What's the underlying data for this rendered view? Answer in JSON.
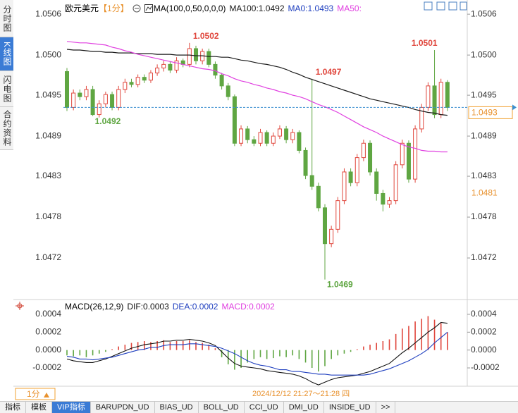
{
  "sidebar_tabs": [
    "分时图",
    "K线图",
    "闪电图",
    "合约资料"
  ],
  "chart_data": [
    {
      "type": "candlestick",
      "title": "欧元美元",
      "subtitle": "【1分】",
      "indicator": "MA(100,0,50,0,0,0)",
      "extra_label": "MA0:1.0493",
      "up_color": "#e0463c",
      "down_color": "#5fa642",
      "open": [
        1.0498,
        1.0493,
        1.0495,
        1.04945,
        1.04955,
        1.0492,
        1.04935,
        1.04948,
        1.0493,
        1.04955,
        1.04965,
        1.04962,
        1.04972,
        1.04968,
        1.04978,
        1.04985,
        1.0499,
        1.04982,
        1.04995,
        1.0499,
        1.05012,
        1.04995,
        1.05008,
        1.0499,
        1.04975,
        1.0496,
        1.04945,
        1.0488,
        1.049,
        1.04885,
        1.0488,
        1.04895,
        1.0488,
        1.0489,
        1.049,
        1.04885,
        1.04895,
        1.0487,
        1.04835,
        1.0482,
        1.0479,
        1.0474,
        1.0476,
        1.048,
        1.0484,
        1.04825,
        1.0486,
        1.0488,
        1.0484,
        1.0481,
        1.04795,
        1.048,
        1.0485,
        1.0488,
        1.0483,
        1.049,
        1.0493,
        1.0496,
        1.0492,
        1.04965
      ],
      "high": [
        1.04985,
        1.04955,
        1.04955,
        1.0496,
        1.0496,
        1.0494,
        1.04952,
        1.04952,
        1.0496,
        1.0497,
        1.0497,
        1.04976,
        1.04976,
        1.04982,
        1.0499,
        1.04995,
        1.04994,
        1.05,
        1.04998,
        1.0502,
        1.05016,
        1.05012,
        1.05012,
        1.04994,
        1.04978,
        1.04964,
        1.04948,
        1.04905,
        1.04904,
        1.0489,
        1.049,
        1.04898,
        1.04895,
        1.04905,
        1.04904,
        1.049,
        1.04898,
        1.04874,
        1.0497,
        1.04825,
        1.04795,
        1.04765,
        1.04805,
        1.04845,
        1.04845,
        1.04865,
        1.04885,
        1.04884,
        1.04845,
        1.04815,
        1.04805,
        1.04855,
        1.04885,
        1.04884,
        1.04905,
        1.04935,
        1.04965,
        1.0501,
        1.0497,
        1.04968
      ],
      "low": [
        1.04925,
        1.04926,
        1.0494,
        1.0494,
        1.04918,
        1.04916,
        1.0493,
        1.04926,
        1.04926,
        1.0495,
        1.04958,
        1.04958,
        1.04964,
        1.04964,
        1.04974,
        1.0498,
        1.04978,
        1.04978,
        1.04986,
        1.04986,
        1.0499,
        1.0499,
        1.04986,
        1.0497,
        1.04955,
        1.0494,
        1.04876,
        1.04876,
        1.0488,
        1.04876,
        1.04876,
        1.04876,
        1.04876,
        1.04886,
        1.0488,
        1.0488,
        1.04866,
        1.0483,
        1.04815,
        1.04785,
        1.0469,
        1.04735,
        1.04755,
        1.04795,
        1.0482,
        1.0482,
        1.04855,
        1.04835,
        1.048,
        1.04785,
        1.0479,
        1.04795,
        1.04845,
        1.04825,
        1.04825,
        1.04895,
        1.04925,
        1.04915,
        1.04915,
        1.04925
      ],
      "close": [
        1.0493,
        1.0495,
        1.04945,
        1.04955,
        1.0492,
        1.04935,
        1.04948,
        1.0493,
        1.04955,
        1.04965,
        1.04962,
        1.04972,
        1.04968,
        1.04978,
        1.04985,
        1.0499,
        1.04982,
        1.04995,
        1.0499,
        1.05012,
        1.04995,
        1.05008,
        1.0499,
        1.04975,
        1.0496,
        1.04945,
        1.0488,
        1.049,
        1.04885,
        1.0488,
        1.04895,
        1.0488,
        1.0489,
        1.049,
        1.04885,
        1.04895,
        1.0487,
        1.04835,
        1.0482,
        1.0479,
        1.0474,
        1.0476,
        1.048,
        1.0484,
        1.04825,
        1.0486,
        1.0488,
        1.0484,
        1.0481,
        1.04795,
        1.048,
        1.0485,
        1.0488,
        1.0483,
        1.049,
        1.0493,
        1.0496,
        1.0492,
        1.04965,
        1.0493
      ],
      "high_labels": [
        null,
        null,
        null,
        null,
        null,
        null,
        null,
        null,
        null,
        null,
        null,
        null,
        null,
        null,
        null,
        null,
        null,
        null,
        null,
        "1.0502",
        null,
        null,
        null,
        null,
        null,
        null,
        null,
        null,
        null,
        null,
        null,
        null,
        null,
        null,
        null,
        null,
        null,
        null,
        "1.0497",
        null,
        null,
        null,
        null,
        null,
        null,
        null,
        null,
        null,
        null,
        null,
        null,
        null,
        null,
        null,
        null,
        null,
        null,
        "1.0501",
        null,
        null
      ],
      "low_labels": [
        null,
        null,
        null,
        null,
        "1.0492",
        null,
        null,
        null,
        null,
        null,
        null,
        null,
        null,
        null,
        null,
        null,
        null,
        null,
        null,
        null,
        null,
        null,
        null,
        null,
        null,
        null,
        null,
        null,
        null,
        null,
        null,
        null,
        null,
        null,
        null,
        null,
        null,
        null,
        null,
        null,
        "1.0469",
        null,
        null,
        null,
        null,
        null,
        null,
        null,
        null,
        null,
        null,
        null,
        null,
        null,
        null,
        null,
        null,
        null,
        null,
        null
      ],
      "series": [
        {
          "name": "MA100:1.0492",
          "color": "#1a1a1a",
          "values": [
            1.05011,
            1.0501,
            1.0501,
            1.05009,
            1.05008,
            1.05008,
            1.05007,
            1.05007,
            1.05006,
            1.05006,
            1.05006,
            1.05005,
            1.05005,
            1.05005,
            1.05004,
            1.05004,
            1.05004,
            1.05003,
            1.05003,
            1.05003,
            1.05002,
            1.05002,
            1.05001,
            1.05001,
            1.05,
            1.05,
            1.04998,
            1.04996,
            1.04995,
            1.04993,
            1.04991,
            1.0499,
            1.04988,
            1.04986,
            1.04983,
            1.04979,
            1.04976,
            1.04972,
            1.04969,
            1.04966,
            1.04963,
            1.0496,
            1.04957,
            1.04954,
            1.04951,
            1.04948,
            1.04945,
            1.04942,
            1.0494,
            1.04938,
            1.04936,
            1.04934,
            1.04932,
            1.0493,
            1.04927,
            1.04925,
            1.04923,
            1.04922,
            1.0492,
            1.04919
          ]
        },
        {
          "name": "MA50:",
          "color": "#e040e0",
          "values": [
            1.05022,
            1.05021,
            1.0502,
            1.0502,
            1.05019,
            1.05018,
            1.05017,
            1.05014,
            1.05012,
            1.05009,
            1.05007,
            1.05004,
            1.05002,
            1.05,
            1.04998,
            1.04996,
            1.04994,
            1.04992,
            1.0499,
            1.04988,
            1.04986,
            1.04984,
            1.04983,
            1.04981,
            1.04977,
            1.04974,
            1.0497,
            1.04967,
            1.04965,
            1.04962,
            1.0496,
            1.04957,
            1.04955,
            1.04952,
            1.0495,
            1.04947,
            1.04945,
            1.04942,
            1.04938,
            1.04934,
            1.04931,
            1.04927,
            1.04923,
            1.04918,
            1.04913,
            1.04908,
            1.04903,
            1.04899,
            1.04895,
            1.0489,
            1.04886,
            1.04882,
            1.04878,
            1.04875,
            1.04873,
            1.0487,
            1.04869,
            1.04869,
            1.04868,
            1.04868
          ]
        }
      ],
      "ylim": [
        1.04665,
        1.05068
      ],
      "yticks": [
        {
          "value": 1.0506,
          "label": "1.0506"
        },
        {
          "value": 1.05003,
          "label": "1.0500"
        },
        {
          "value": 1.04947,
          "label": "1.0495"
        },
        {
          "value": 1.0489,
          "label": "1.0489"
        },
        {
          "value": 1.04834,
          "label": "1.0483"
        },
        {
          "value": 1.04777,
          "label": "1.0478"
        },
        {
          "value": 1.0472,
          "label": "1.0472"
        }
      ],
      "last_price": 1.0493,
      "marker_price": 1.0481
    },
    {
      "type": "macd",
      "title": "MACD(26,12,9)",
      "up_color": "#e0463c",
      "down_color": "#5fa642",
      "histogram": {
        "name": "MACD:0.0002",
        "color": "#e040e0",
        "values": [
          -6e-05,
          -7e-05,
          -6e-05,
          -8e-05,
          -6e-05,
          -4e-05,
          -2e-05,
          1e-05,
          4e-05,
          6e-05,
          8e-05,
          9e-05,
          0.0001,
          9e-05,
          0.0001,
          0.00011,
          9e-05,
          0.0001,
          0.0001,
          0.00011,
          9e-05,
          8e-05,
          6e-05,
          2e-05,
          -8e-05,
          -0.00016,
          -0.00022,
          -0.0002,
          -0.00014,
          -0.0001,
          -8e-05,
          -0.0001,
          -9e-05,
          -7e-05,
          -8e-05,
          -6e-05,
          -0.0001,
          -0.00014,
          -0.0002,
          -0.00024,
          -0.00018,
          -0.0001,
          -6e-05,
          -4e-05,
          -2e-05,
          1e-05,
          4e-05,
          6e-05,
          8e-05,
          0.0001,
          0.00012,
          0.00018,
          0.00024,
          0.00027,
          0.00032,
          0.00035,
          0.00038,
          0.00034,
          0.0003,
          0.0002
        ]
      },
      "series": [
        {
          "name": "DIF:0.0003",
          "color": "#111111",
          "values": [
            -0.0001,
            -0.00012,
            -0.00013,
            -0.00014,
            -0.00014,
            -0.00012,
            -0.0001,
            -7e-05,
            -4e-05,
            -1e-05,
            2e-05,
            4e-05,
            6e-05,
            7e-05,
            8e-05,
            0.0001,
            0.0001,
            0.00011,
            0.00011,
            0.00012,
            0.00011,
            0.0001,
            8e-05,
            5e-05,
            -2e-05,
            -9e-05,
            -0.00015,
            -0.00018,
            -0.00019,
            -0.0002,
            -0.00021,
            -0.00023,
            -0.00024,
            -0.00025,
            -0.00026,
            -0.00027,
            -0.00029,
            -0.00032,
            -0.00036,
            -0.00039,
            -0.00036,
            -0.00033,
            -0.00031,
            -0.0003,
            -0.00029,
            -0.00028,
            -0.00026,
            -0.00024,
            -0.00021,
            -0.00018,
            -0.00015,
            -9e-05,
            -3e-05,
            2e-05,
            8e-05,
            0.00014,
            0.0002,
            0.00025,
            0.00031,
            0.0003
          ]
        },
        {
          "name": "DEA:0.0002",
          "color": "#1f3fbf",
          "values": [
            -7e-05,
            -8e-05,
            -0.0001,
            -0.0001,
            -0.00011,
            -0.0001,
            -9e-05,
            -8e-05,
            -6e-05,
            -4e-05,
            -2e-05,
            0.0,
            1e-05,
            3e-05,
            3e-05,
            5e-05,
            6e-05,
            6e-05,
            6e-05,
            7e-05,
            7e-05,
            6e-05,
            5e-05,
            4e-05,
            2e-05,
            -1e-05,
            -4e-05,
            -8e-05,
            -0.00012,
            -0.00015,
            -0.00017,
            -0.00018,
            -0.0002,
            -0.00022,
            -0.00022,
            -0.00024,
            -0.00024,
            -0.00025,
            -0.00026,
            -0.00027,
            -0.00027,
            -0.00028,
            -0.00028,
            -0.00028,
            -0.00028,
            -0.00028,
            -0.00028,
            -0.00027,
            -0.00025,
            -0.00023,
            -0.00021,
            -0.00018,
            -0.00015,
            -0.00012,
            -8e-05,
            -4e-05,
            1e-05,
            8e-05,
            0.00014,
            0.0002
          ]
        }
      ],
      "ylim": [
        -0.000405,
        0.000542
      ],
      "yticks": [
        0.0004,
        0.0002,
        {
          "value": 0,
          "label": "0.0000"
        },
        -0.0002
      ]
    }
  ],
  "footer": {
    "period": "1分",
    "time": "2024/12/12 21:27～21:28 四",
    "tabs": [
      "指标",
      "模板",
      "VIP指标",
      "BARUPDN_UD",
      "BIAS_UD",
      "BOLL_UD",
      "CCI_UD",
      "DMI_UD",
      "INSIDE_UD",
      ">>"
    ]
  }
}
